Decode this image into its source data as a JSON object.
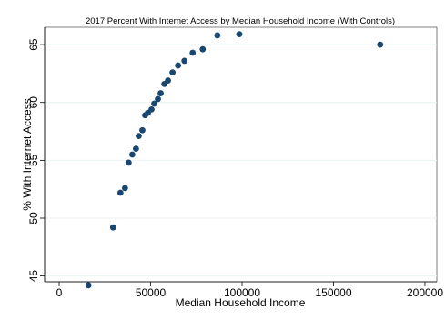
{
  "chart_data": {
    "type": "scatter",
    "title": "2017 Percent With Internet Access by Median Household Income (With Controls)",
    "xlabel": "Median Household Income",
    "ylabel": "% With Internet Access",
    "xlim": [
      0,
      200000
    ],
    "ylim": [
      44.5,
      66.5
    ],
    "xticks": [
      0,
      50000,
      100000,
      150000,
      200000
    ],
    "yticks": [
      45,
      50,
      55,
      60,
      65
    ],
    "grid": true,
    "legend": "none",
    "colors": {
      "marker": "#1a476f",
      "grid": "#eaf2f3",
      "background": "#ffffff",
      "title_band": "#ffffff"
    },
    "series": [
      {
        "points": [
          [
            16000,
            44.2
          ],
          [
            29500,
            49.2
          ],
          [
            33500,
            52.2
          ],
          [
            36000,
            52.6
          ],
          [
            38000,
            54.8
          ],
          [
            40000,
            55.5
          ],
          [
            42000,
            56.0
          ],
          [
            43500,
            57.1
          ],
          [
            45500,
            57.6
          ],
          [
            47000,
            58.9
          ],
          [
            48500,
            59.1
          ],
          [
            50500,
            59.4
          ],
          [
            52000,
            59.9
          ],
          [
            54000,
            60.3
          ],
          [
            55500,
            60.8
          ],
          [
            57500,
            61.6
          ],
          [
            59500,
            61.9
          ],
          [
            62000,
            62.6
          ],
          [
            65000,
            63.2
          ],
          [
            68500,
            63.6
          ],
          [
            73000,
            64.3
          ],
          [
            78500,
            64.6
          ],
          [
            86500,
            65.8
          ],
          [
            98500,
            65.9
          ],
          [
            175500,
            65.0
          ]
        ]
      }
    ]
  }
}
